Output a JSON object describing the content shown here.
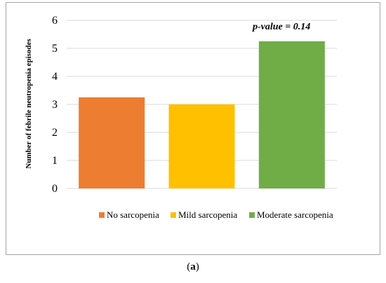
{
  "chart_data": {
    "type": "bar",
    "categories": [
      "No sarcopenia",
      "Mild sarcopenia",
      "Moderate sarcopenia"
    ],
    "values": [
      3.25,
      3.0,
      5.25
    ],
    "colors": [
      "#ED7D31",
      "#FFC000",
      "#70AD47"
    ],
    "ylabel": "Number of febrile neutropenia episodes",
    "xlabel": "",
    "ylim": [
      0,
      6
    ],
    "yticks": [
      "0",
      "1",
      "2",
      "3",
      "4",
      "5",
      "6"
    ],
    "gridlines": true,
    "legend": "bottom",
    "annotation": "p-value = 0.14"
  },
  "caption": {
    "open": "(",
    "letter": "a",
    "close": ")"
  }
}
